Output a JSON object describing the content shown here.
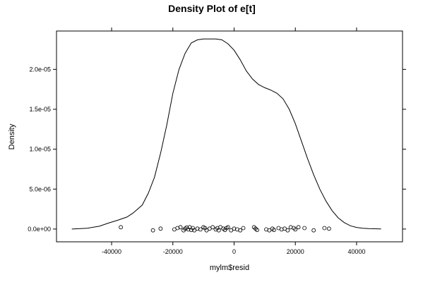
{
  "chart_data": {
    "type": "line",
    "title": "Density Plot of e[t]",
    "xlabel": "mylm$resid",
    "ylabel": "Density",
    "xlim": [
      -58000,
      55000
    ],
    "ylim": [
      -1.6e-06,
      2.48e-05
    ],
    "x_ticks": [
      {
        "value": -40000,
        "label": "-40000"
      },
      {
        "value": -20000,
        "label": "-20000"
      },
      {
        "value": 0,
        "label": "0"
      },
      {
        "value": 20000,
        "label": "20000"
      },
      {
        "value": 40000,
        "label": "40000"
      }
    ],
    "y_ticks": [
      {
        "value": 0,
        "label": "0.0e+00"
      },
      {
        "value": 5e-06,
        "label": "5.0e-06"
      },
      {
        "value": 1e-05,
        "label": "1.0e-05"
      },
      {
        "value": 1.5e-05,
        "label": "1.5e-05"
      },
      {
        "value": 2e-05,
        "label": "2.0e-05"
      }
    ],
    "grid": false,
    "series": [
      {
        "name": "",
        "x": [
          -53000,
          -48000,
          -44000,
          -41000,
          -38000,
          -35000,
          -33000,
          -30000,
          -28000,
          -26000,
          -24000,
          -22000,
          -20000,
          -18000,
          -16000,
          -14000,
          -12000,
          -10000,
          -8000,
          -6000,
          -4000,
          -2000,
          0,
          2000,
          4000,
          6000,
          8000,
          10000,
          12000,
          14000,
          16000,
          18000,
          20000,
          22000,
          24000,
          26000,
          28000,
          30000,
          32000,
          34000,
          36000,
          38000,
          40000,
          42000,
          44000,
          48000
        ],
        "y": [
          0,
          1e-07,
          3.5e-07,
          7.5e-07,
          1.1e-06,
          1.5e-06,
          2e-06,
          3e-06,
          4.5e-06,
          6.5e-06,
          9.5e-06,
          1.3e-05,
          1.7e-05,
          2e-05,
          2.2e-05,
          2.33e-05,
          2.37e-05,
          2.38e-05,
          2.38e-05,
          2.38e-05,
          2.37e-05,
          2.32e-05,
          2.24e-05,
          2.12e-05,
          1.98e-05,
          1.88e-05,
          1.81e-05,
          1.77e-05,
          1.74e-05,
          1.7e-05,
          1.63e-05,
          1.5e-05,
          1.32e-05,
          1.1e-05,
          8.8e-06,
          6.8e-06,
          5e-06,
          3.5e-06,
          2.3e-06,
          1.4e-06,
          8e-07,
          4e-07,
          2e-07,
          1e-07,
          5e-08,
          1e-08
        ]
      }
    ],
    "rug_points": {
      "x": [
        -37000,
        -26500,
        -24000,
        -19500,
        -18500,
        -17500,
        -16500,
        -16000,
        -15500,
        -15000,
        -14500,
        -14000,
        -13500,
        -13000,
        -12000,
        -11000,
        -10000,
        -9500,
        -9000,
        -8000,
        -7000,
        -6000,
        -5500,
        -5000,
        -4500,
        -3500,
        -3000,
        -2500,
        -2000,
        -1000,
        0,
        1000,
        2000,
        3000,
        6500,
        7000,
        7500,
        10500,
        11500,
        12500,
        13000,
        14500,
        15500,
        16500,
        17500,
        18500,
        19500,
        20000,
        21000,
        23000,
        26000,
        29500,
        31000
      ],
      "y": [
        2.3e-07,
        -1.6e-07,
        5e-08,
        -5e-08,
        1.2e-07,
        2.3e-07,
        -1.6e-07,
        5e-08,
        1.8e-07,
        -5e-08,
        2.3e-07,
        -1.2e-07,
        1.2e-07,
        -1.6e-07,
        5e-08,
        -5e-08,
        2.3e-07,
        1.2e-07,
        -1.6e-07,
        5e-08,
        2.3e-07,
        -5e-08,
        1.2e-07,
        -1.6e-07,
        2.3e-07,
        5e-08,
        -1.2e-07,
        1.2e-07,
        2.3e-07,
        -1.6e-07,
        5e-08,
        -5e-08,
        -1.6e-07,
        1.2e-07,
        2.3e-07,
        5e-08,
        -1.2e-07,
        -5e-08,
        -1.6e-07,
        5e-08,
        -1.2e-07,
        1.2e-07,
        -5e-08,
        5e-08,
        -1.6e-07,
        2.3e-07,
        1.2e-07,
        -5e-08,
        2.3e-07,
        1.2e-07,
        -1.6e-07,
        1.2e-07,
        5e-08
      ]
    }
  }
}
